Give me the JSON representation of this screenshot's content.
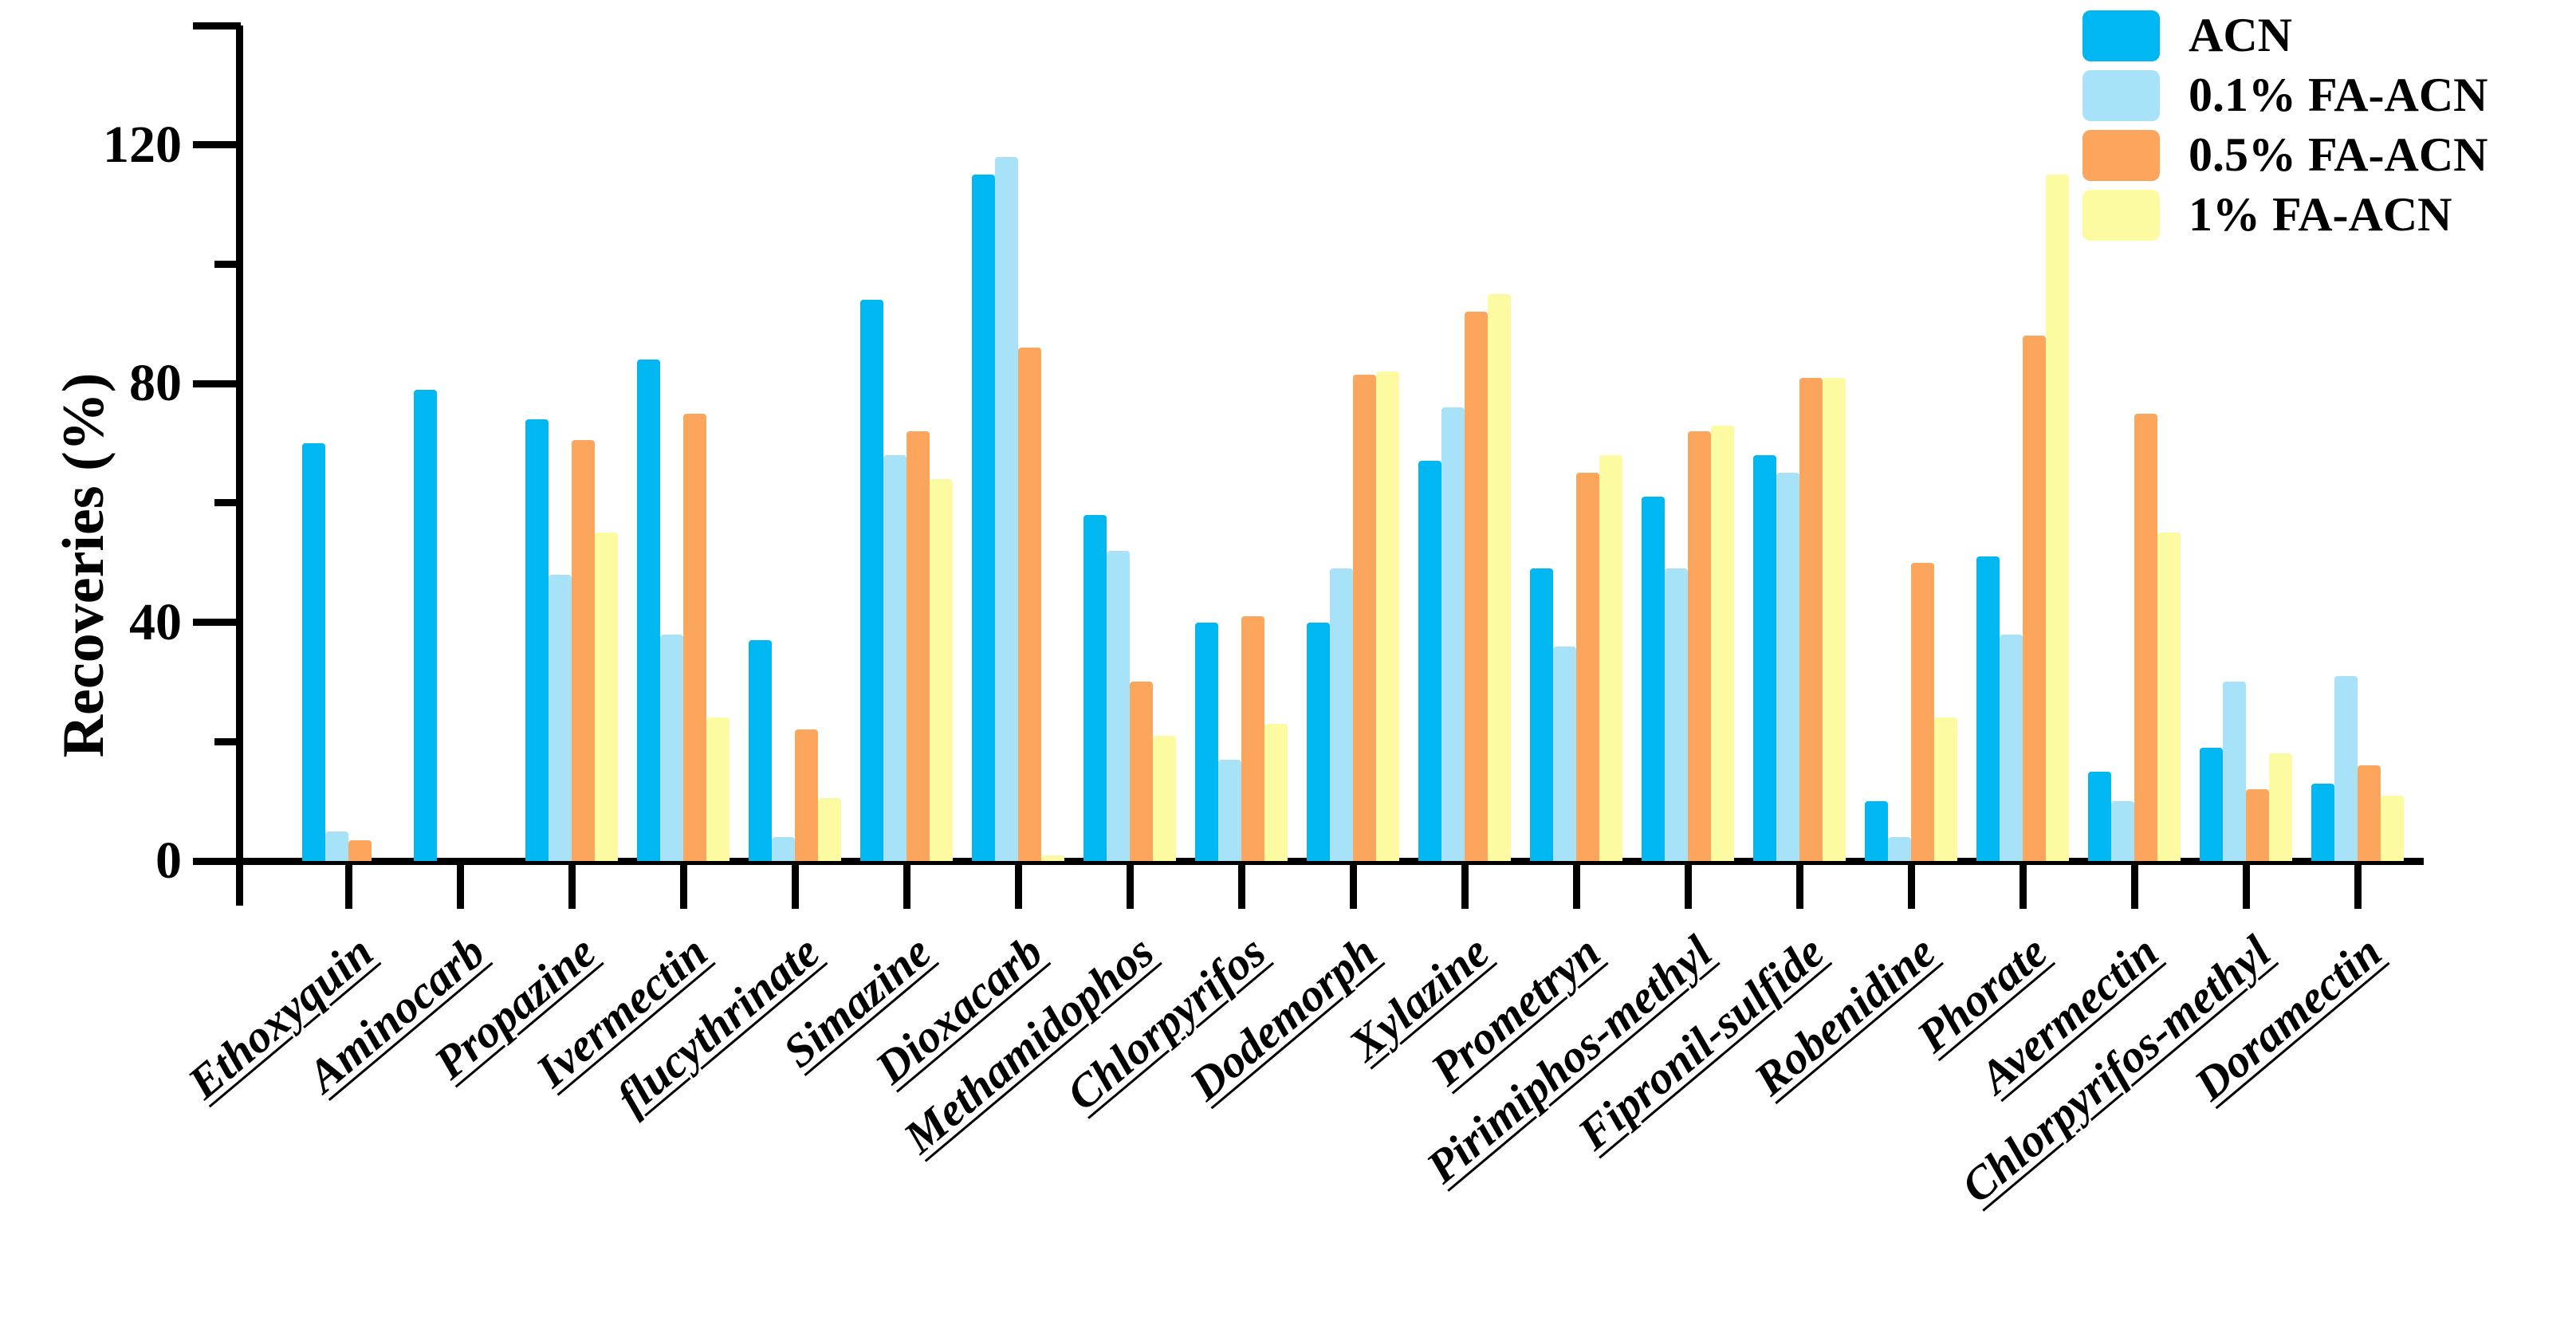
{
  "y_axis": {
    "label": "Recoveries (%)",
    "max": 140,
    "ticks": [
      {
        "v": 0,
        "label": "0",
        "major": true
      },
      {
        "v": 20,
        "label": "",
        "major": false
      },
      {
        "v": 40,
        "label": "40",
        "major": true
      },
      {
        "v": 60,
        "label": "",
        "major": false
      },
      {
        "v": 80,
        "label": "80",
        "major": true
      },
      {
        "v": 100,
        "label": "",
        "major": false
      },
      {
        "v": 120,
        "label": "120",
        "major": true
      },
      {
        "v": 140,
        "label": "",
        "major": true
      }
    ]
  },
  "legend": [
    {
      "label": "ACN",
      "color": "#00b7f1"
    },
    {
      "label": "0.1% FA-ACN",
      "color": "#a8e2f9"
    },
    {
      "label": "0.5% FA-ACN",
      "color": "#fca55d"
    },
    {
      "label": "1% FA-ACN",
      "color": "#fdfba2"
    }
  ],
  "chart_data": {
    "type": "bar",
    "title": "",
    "xlabel": "",
    "ylabel": "Recoveries (%)",
    "ylim": [
      0,
      140
    ],
    "grid": false,
    "legend_position": "top-right",
    "categories": [
      "Ethoxyquin",
      "Aminocarb",
      "Propazine",
      "Ivermectin",
      "flucythrinate",
      "Simazine",
      "Dioxacarb",
      "Methamidophos",
      "Chlorpyrifos",
      "Dodemorph",
      "Xylazine",
      "Prometryn",
      "Pirimiphos-methyl",
      "Fipronil-sulfide",
      "Robenidine",
      "Phorate",
      "Avermectin",
      "Chlorpyrifos-methyl",
      "Doramectin"
    ],
    "series": [
      {
        "name": "ACN",
        "color": "#00b7f1",
        "values": [
          70,
          79,
          74,
          84,
          37,
          94,
          115,
          58,
          40,
          40,
          67,
          49,
          61,
          68,
          10,
          51,
          15,
          19,
          13
        ]
      },
      {
        "name": "0.1% FA-ACN",
        "color": "#a8e2f9",
        "values": [
          5,
          0,
          48,
          38,
          4,
          68,
          118,
          52,
          17,
          49,
          76,
          36,
          49,
          65,
          4,
          38,
          10,
          30,
          31
        ]
      },
      {
        "name": "0.5% FA-ACN",
        "color": "#fca55d",
        "values": [
          3.5,
          0,
          70.5,
          75,
          22,
          72,
          86,
          30,
          41,
          81.5,
          92,
          65,
          72,
          81,
          50,
          88,
          75,
          12,
          16
        ]
      },
      {
        "name": "1% FA-ACN",
        "color": "#fdfba2",
        "values": [
          0,
          0,
          55,
          24,
          10.5,
          64,
          1,
          21,
          23,
          82,
          95,
          68,
          73,
          81,
          24,
          115,
          55,
          18,
          11
        ]
      }
    ]
  }
}
